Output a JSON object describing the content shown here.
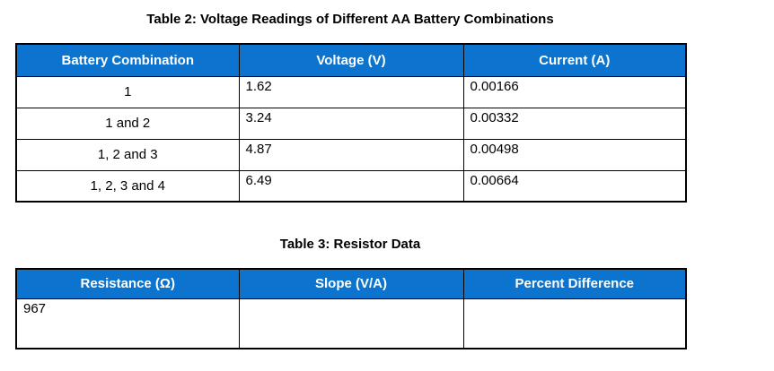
{
  "colors": {
    "header_bg": "#0c74ce",
    "header_text": "#ffffff",
    "border": "#000000",
    "body_text": "#000000",
    "page_bg": "#ffffff"
  },
  "table2": {
    "title": "Table 2: Voltage Readings of Different AA Battery Combinations",
    "headers": [
      "Battery Combination",
      "Voltage (V)",
      "Current (A)"
    ],
    "rows": [
      [
        "1",
        "1.62",
        "0.00166"
      ],
      [
        "1 and 2",
        "3.24",
        "0.00332"
      ],
      [
        "1, 2 and 3",
        "4.87",
        "0.00498"
      ],
      [
        "1, 2, 3 and 4",
        "6.49",
        "0.00664"
      ]
    ]
  },
  "table3": {
    "title": "Table 3: Resistor Data",
    "headers": [
      "Resistance (Ω)",
      "Slope (V/A)",
      "Percent Difference"
    ],
    "rows": [
      [
        "967",
        "",
        ""
      ]
    ]
  }
}
